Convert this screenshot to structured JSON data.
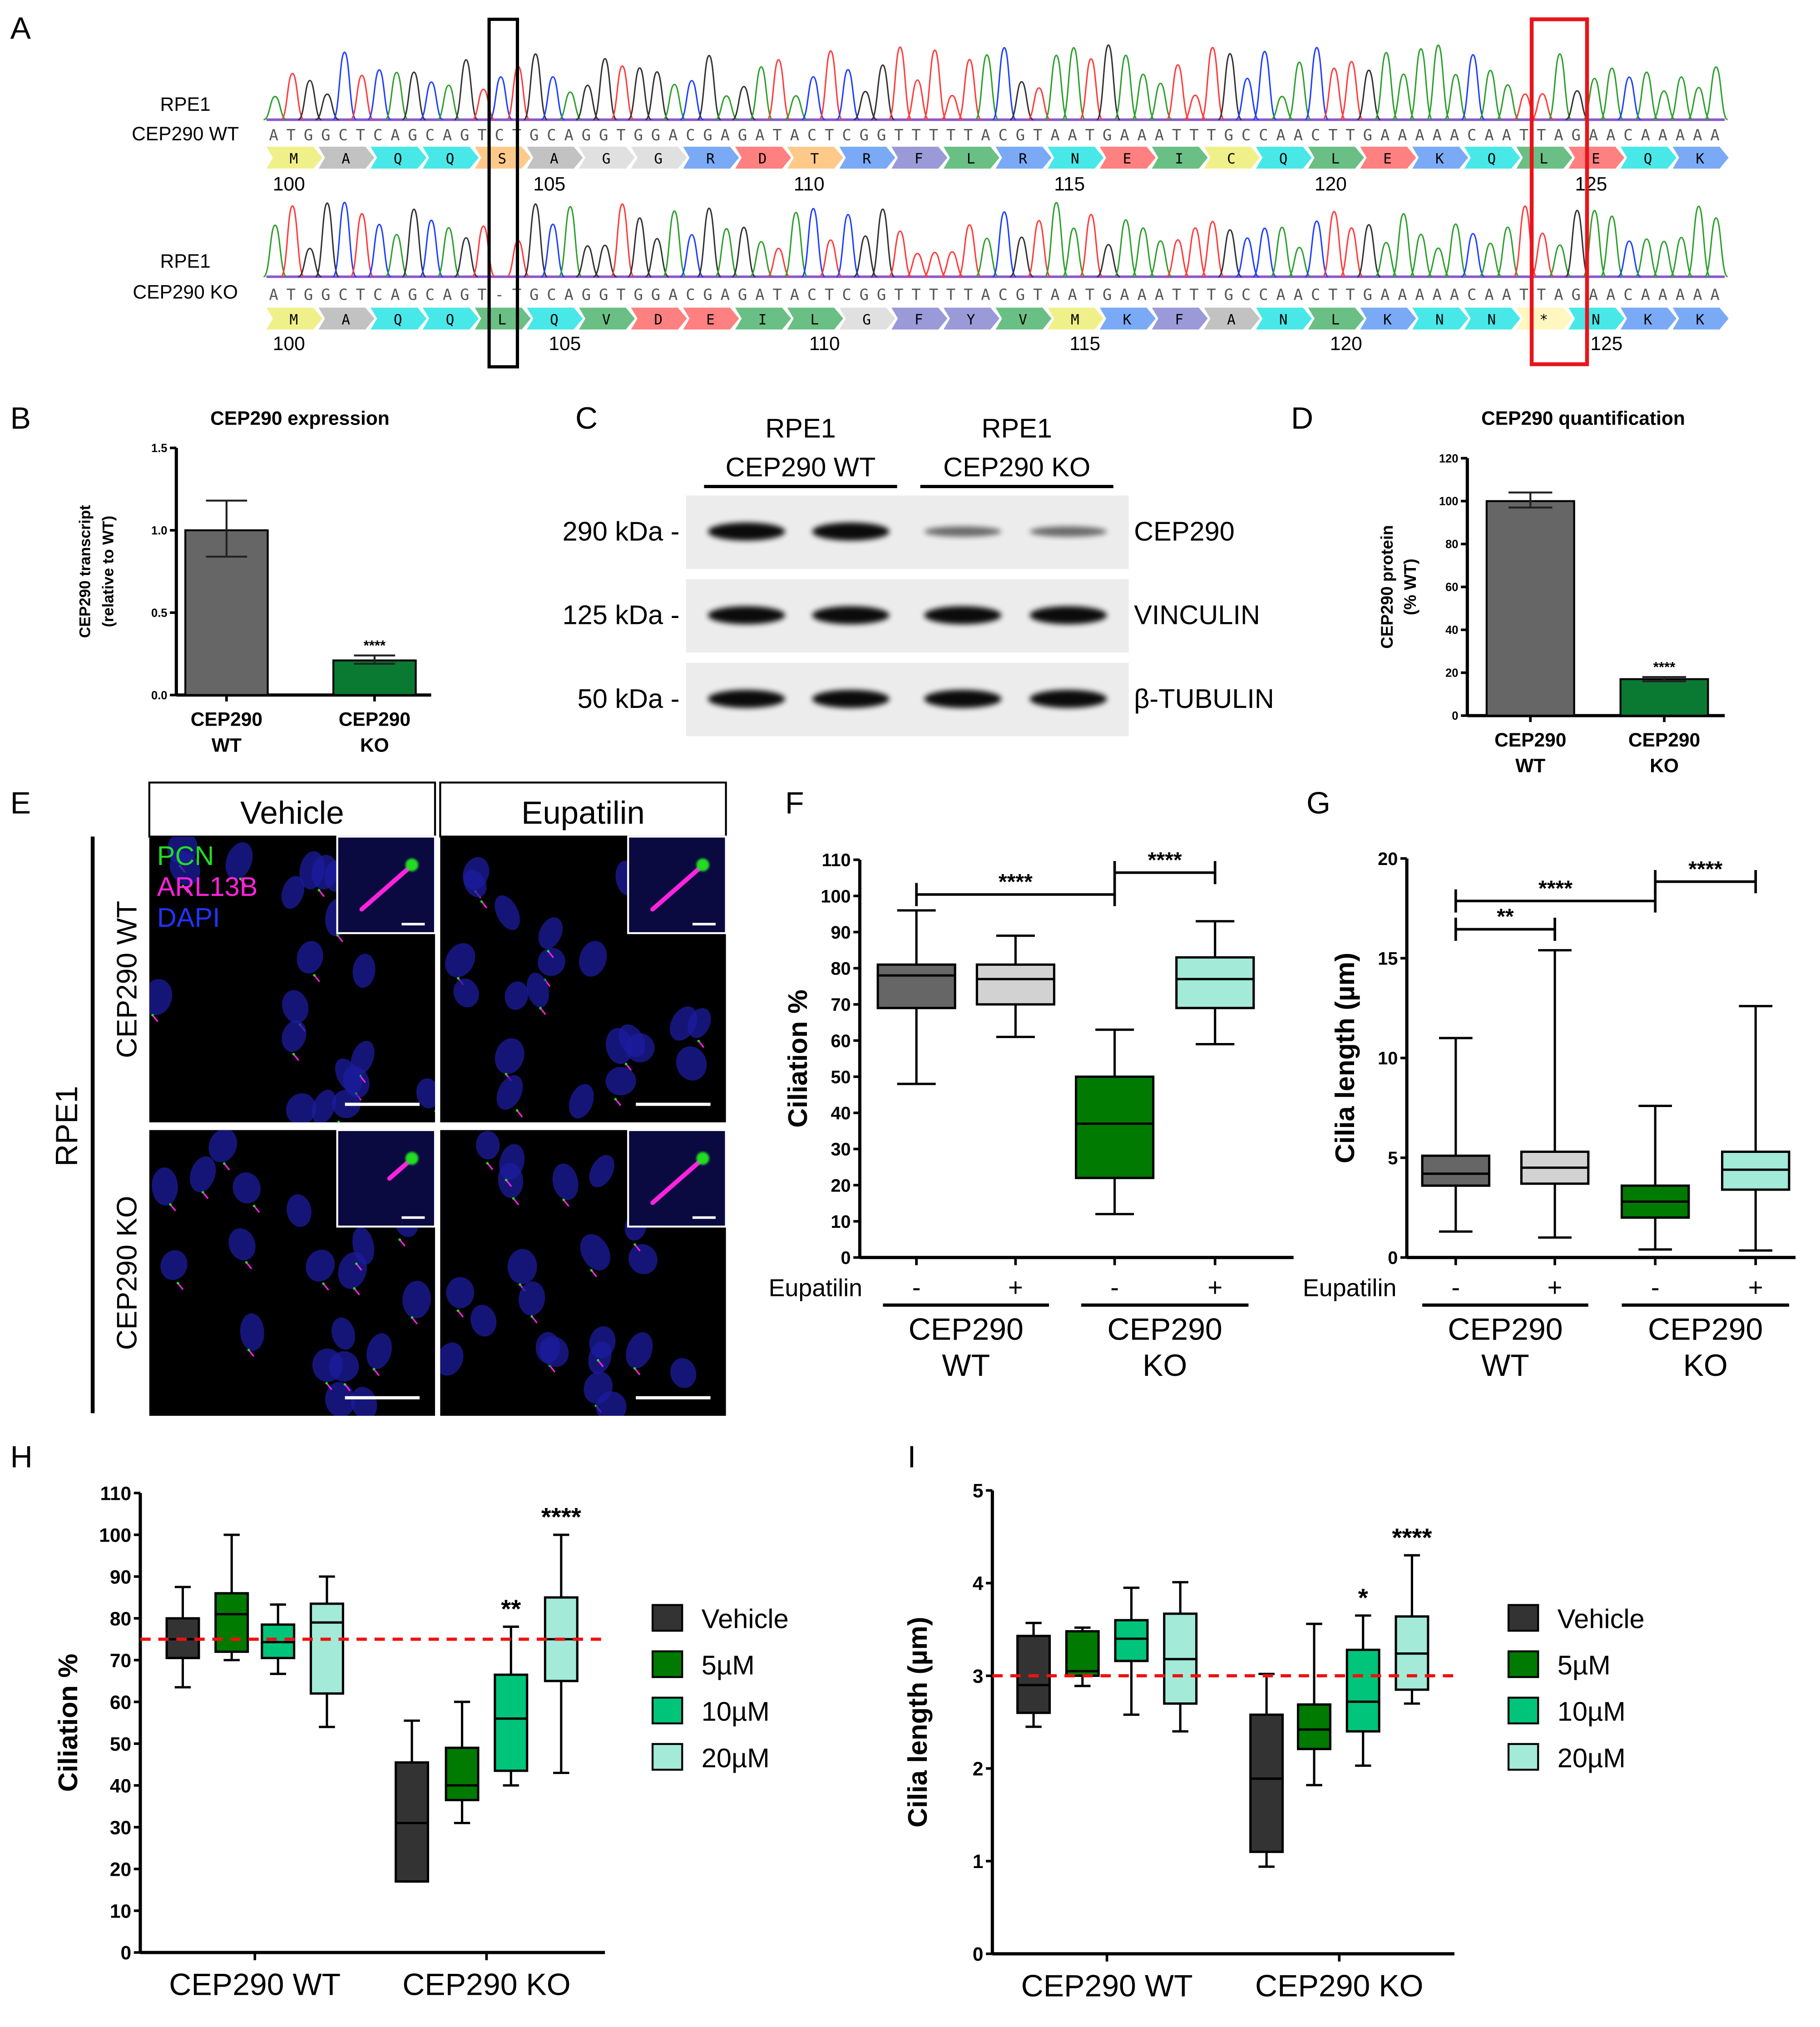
{
  "panel_letters": [
    "A",
    "B",
    "C",
    "D",
    "E",
    "F",
    "G",
    "H",
    "I"
  ],
  "panel_a": {
    "rows": [
      {
        "label_line1": "RPE1",
        "label_line2": "CEP290 WT",
        "nt": "ATGGCTCAGCAGTCTGCAGGTGGACGAGATACTCGGTTTTTACGTAATGAAATTTGCCAACTTGAAAAACAATTAGAACAAAAA",
        "aa": [
          "M",
          "A",
          "Q",
          "Q",
          "S",
          "A",
          "G",
          "G",
          "R",
          "D",
          "T",
          "R",
          "F",
          "L",
          "R",
          "N",
          "E",
          "I",
          "C",
          "Q",
          "L",
          "E",
          "K",
          "Q",
          "L",
          "E",
          "Q",
          "K"
        ],
        "positions": [
          "100",
          "105",
          "110",
          "115",
          "120",
          "125"
        ]
      },
      {
        "label_line1": "RPE1",
        "label_line2": "CEP290 KO",
        "nt": "ATGGCTCAGCAGT-TGCAGGTGGACGAGATACTCGGTTTTTACGTAATGAAATTTGCCAACTTGAAAAACAATTAGAACAAAAA",
        "aa": [
          "M",
          "A",
          "Q",
          "Q",
          "L",
          "Q",
          "V",
          "D",
          "E",
          "I",
          "L",
          "G",
          "F",
          "Y",
          "V",
          "M",
          "K",
          "F",
          "A",
          "N",
          "L",
          "K",
          "N",
          "N",
          "*",
          "N",
          "K",
          "K"
        ],
        "positions": [
          "100",
          "105",
          "110",
          "115",
          "120",
          "125"
        ]
      }
    ],
    "base_colors": {
      "A": "#2ca02c",
      "C": "#1f3fff",
      "G": "#333333",
      "T": "#ff3b3b"
    },
    "residue_colors": {
      "M": "#f0f08a",
      "A": "#c2c2c2",
      "Q": "#48e8e8",
      "S": "#ffc98a",
      "G": "#e0e0e0",
      "R": "#7aaaf5",
      "D": "#ff8080",
      "T": "#ffc98a",
      "F": "#9a9ad8",
      "L": "#6abf84",
      "N": "#48e8e8",
      "E": "#ff8080",
      "I": "#6abf84",
      "C": "#f0f08a",
      "K": "#7aaaf5",
      "V": "#6abf84",
      "Y": "#9a9ad8",
      "*": "#fff6c0"
    },
    "frameshift_box_color": "#000000",
    "stop_box_color": "#e8141c"
  },
  "panel_c": {
    "groups": [
      {
        "line1": "RPE1",
        "line2": "CEP290 WT"
      },
      {
        "line1": "RPE1",
        "line2": "CEP290 KO"
      }
    ],
    "blots": [
      {
        "size": "290 kDa -",
        "protein": "CEP290",
        "band_intensity": [
          1.0,
          1.0,
          0.3,
          0.25
        ]
      },
      {
        "size": "125 kDa -",
        "protein": "VINCULIN",
        "band_intensity": [
          1.0,
          1.0,
          1.0,
          1.0
        ]
      },
      {
        "size": "50 kDa -",
        "protein": "β-TUBULIN",
        "band_intensity": [
          1.0,
          1.0,
          1.0,
          1.0
        ]
      }
    ]
  },
  "panel_e": {
    "columns": [
      "Vehicle",
      "Eupatilin"
    ],
    "rows": [
      "CEP290 WT",
      "CEP290 KO"
    ],
    "cell_line": "RPE1",
    "channels": [
      {
        "name": "PCN",
        "color": "#22dd22"
      },
      {
        "name": "ARL13B",
        "color": "#ff22dd"
      },
      {
        "name": "DAPI",
        "color": "#2233ff"
      }
    ]
  },
  "chart_data": [
    {
      "id": "B",
      "type": "bar",
      "title": "CEP290 expression",
      "ylabel": [
        "CEP290 transcript",
        "(relative to WT)"
      ],
      "categories": [
        [
          "CEP290",
          "WT"
        ],
        [
          "CEP290",
          "KO"
        ]
      ],
      "values": [
        1.0,
        0.21
      ],
      "error": [
        [
          0.84,
          1.18
        ],
        [
          0.19,
          0.24
        ]
      ],
      "colors": [
        "#666666",
        "#0a7a32"
      ],
      "ylim": [
        0,
        1.5
      ],
      "yticks": [
        "0.0",
        "0.5",
        "1.0",
        "1.5"
      ],
      "annotations": [
        {
          "category": 1,
          "text": "****"
        }
      ]
    },
    {
      "id": "D",
      "type": "bar",
      "title": "CEP290 quantification",
      "ylabel": [
        "CEP290 protein",
        "(% WT)"
      ],
      "categories": [
        [
          "CEP290",
          "WT"
        ],
        [
          "CEP290",
          "KO"
        ]
      ],
      "values": [
        100,
        17
      ],
      "error": [
        [
          97,
          104
        ],
        [
          16,
          18
        ]
      ],
      "colors": [
        "#666666",
        "#0a7a32"
      ],
      "ylim": [
        0,
        120
      ],
      "yticks": [
        "0",
        "20",
        "40",
        "60",
        "80",
        "100",
        "120"
      ],
      "annotations": [
        {
          "category": 1,
          "text": "****"
        }
      ]
    },
    {
      "id": "F",
      "type": "box",
      "ylabel": [
        "Ciliation %"
      ],
      "row_label": "Eupatilin",
      "categories": [
        "-",
        "+",
        "-",
        "+"
      ],
      "groups": [
        [
          "CEP290",
          "WT"
        ],
        [
          "CEP290",
          "KO"
        ]
      ],
      "boxes": [
        {
          "min": 48,
          "q1": 69,
          "median": 78,
          "q3": 81,
          "max": 96
        },
        {
          "min": 61,
          "q1": 70,
          "median": 77,
          "q3": 81,
          "max": 89
        },
        {
          "min": 12,
          "q1": 22,
          "median": 37,
          "q3": 50,
          "max": 63
        },
        {
          "min": 59,
          "q1": 69,
          "median": 77,
          "q3": 83,
          "max": 93
        }
      ],
      "colors": [
        "#666666",
        "#d2d2d2",
        "#007a00",
        "#a3ead8"
      ],
      "ylim": [
        0,
        110
      ],
      "yticks": [
        "0",
        "10",
        "20",
        "30",
        "40",
        "50",
        "60",
        "70",
        "80",
        "90",
        "100",
        "110"
      ],
      "comparisons": [
        {
          "from": 0,
          "to": 2,
          "text": "****"
        },
        {
          "from": 2,
          "to": 3,
          "text": "****"
        }
      ]
    },
    {
      "id": "G",
      "type": "box",
      "ylabel": [
        "Cilia length (µm)"
      ],
      "row_label": "Eupatilin",
      "categories": [
        "-",
        "+",
        "-",
        "+"
      ],
      "groups": [
        [
          "CEP290",
          "WT"
        ],
        [
          "CEP290",
          "KO"
        ]
      ],
      "boxes": [
        {
          "min": 1.3,
          "q1": 3.6,
          "median": 4.2,
          "q3": 5.1,
          "max": 11.0
        },
        {
          "min": 1.0,
          "q1": 3.7,
          "median": 4.5,
          "q3": 5.3,
          "max": 15.4
        },
        {
          "min": 0.4,
          "q1": 2.0,
          "median": 2.8,
          "q3": 3.6,
          "max": 7.6
        },
        {
          "min": 0.35,
          "q1": 3.4,
          "median": 4.4,
          "q3": 5.3,
          "max": 12.6
        }
      ],
      "colors": [
        "#666666",
        "#d2d2d2",
        "#007a00",
        "#a3ead8"
      ],
      "ylim": [
        0,
        20
      ],
      "yticks": [
        "0",
        "5",
        "10",
        "15",
        "20"
      ],
      "comparisons": [
        {
          "from": 0,
          "to": 1,
          "text": "**"
        },
        {
          "from": 0,
          "to": 2,
          "text": "****"
        },
        {
          "from": 2,
          "to": 3,
          "text": "****"
        }
      ]
    },
    {
      "id": "H",
      "type": "box",
      "ylabel": [
        "Ciliation %"
      ],
      "groups": [
        "CEP290 WT",
        "CEP290 KO"
      ],
      "series": [
        {
          "name": "Vehicle",
          "color": "#333333",
          "boxes": [
            {
              "min": 63.5,
              "q1": 70.5,
              "median": 75,
              "q3": 80,
              "max": 87.5
            },
            {
              "min": 17,
              "q1": 17,
              "median": 31,
              "q3": 45.5,
              "max": 55.5
            }
          ]
        },
        {
          "name": "5µM",
          "color": "#007a00",
          "boxes": [
            {
              "min": 70,
              "q1": 72,
              "median": 81,
              "q3": 86,
              "max": 100
            },
            {
              "min": 31,
              "q1": 36.5,
              "median": 40,
              "q3": 49,
              "max": 60
            }
          ]
        },
        {
          "name": "10µM",
          "color": "#00c47a",
          "boxes": [
            {
              "min": 66.7,
              "q1": 70.5,
              "median": 74.3,
              "q3": 78.5,
              "max": 83.3
            },
            {
              "min": 40,
              "q1": 43.5,
              "median": 56,
              "q3": 66.5,
              "max": 78
            }
          ]
        },
        {
          "name": "20µM",
          "color": "#a3ead8",
          "boxes": [
            {
              "min": 54,
              "q1": 62,
              "median": 79,
              "q3": 83.5,
              "max": 90
            },
            {
              "min": 43,
              "q1": 65,
              "median": 75,
              "q3": 85,
              "max": 100
            }
          ]
        }
      ],
      "reference_line": {
        "value": 75,
        "color": "#ee1111"
      },
      "ylim": [
        0,
        110
      ],
      "yticks": [
        "0",
        "10",
        "20",
        "30",
        "40",
        "50",
        "60",
        "70",
        "80",
        "90",
        "100",
        "110"
      ],
      "annotations": [
        {
          "group": 1,
          "series": 2,
          "text": "**"
        },
        {
          "group": 1,
          "series": 3,
          "text": "****"
        }
      ],
      "legend": "right"
    },
    {
      "id": "I",
      "type": "box",
      "ylabel": [
        "Cilia length (µm)"
      ],
      "groups": [
        "CEP290 WT",
        "CEP290 KO"
      ],
      "series": [
        {
          "name": "Vehicle",
          "color": "#333333",
          "boxes": [
            {
              "min": 2.45,
              "q1": 2.6,
              "median": 2.9,
              "q3": 3.43,
              "max": 3.57
            },
            {
              "min": 0.94,
              "q1": 1.1,
              "median": 1.89,
              "q3": 2.58,
              "max": 3.02
            }
          ]
        },
        {
          "name": "5µM",
          "color": "#007a00",
          "boxes": [
            {
              "min": 2.89,
              "q1": 3.0,
              "median": 3.05,
              "q3": 3.48,
              "max": 3.52
            },
            {
              "min": 1.82,
              "q1": 2.21,
              "median": 2.42,
              "q3": 2.69,
              "max": 3.56
            }
          ]
        },
        {
          "name": "10µM",
          "color": "#00c47a",
          "boxes": [
            {
              "min": 2.58,
              "q1": 3.16,
              "median": 3.4,
              "q3": 3.6,
              "max": 3.95
            },
            {
              "min": 2.03,
              "q1": 2.4,
              "median": 2.72,
              "q3": 3.28,
              "max": 3.65
            }
          ]
        },
        {
          "name": "20µM",
          "color": "#a3ead8",
          "boxes": [
            {
              "min": 2.4,
              "q1": 2.7,
              "median": 3.18,
              "q3": 3.67,
              "max": 4.01
            },
            {
              "min": 2.7,
              "q1": 2.85,
              "median": 3.24,
              "q3": 3.64,
              "max": 4.3
            }
          ]
        }
      ],
      "reference_line": {
        "value": 3,
        "color": "#ee1111"
      },
      "ylim": [
        0,
        5
      ],
      "yticks": [
        "0",
        "1",
        "2",
        "3",
        "4",
        "5"
      ],
      "annotations": [
        {
          "group": 1,
          "series": 2,
          "text": "*"
        },
        {
          "group": 1,
          "series": 3,
          "text": "****"
        }
      ],
      "legend": "right"
    }
  ]
}
